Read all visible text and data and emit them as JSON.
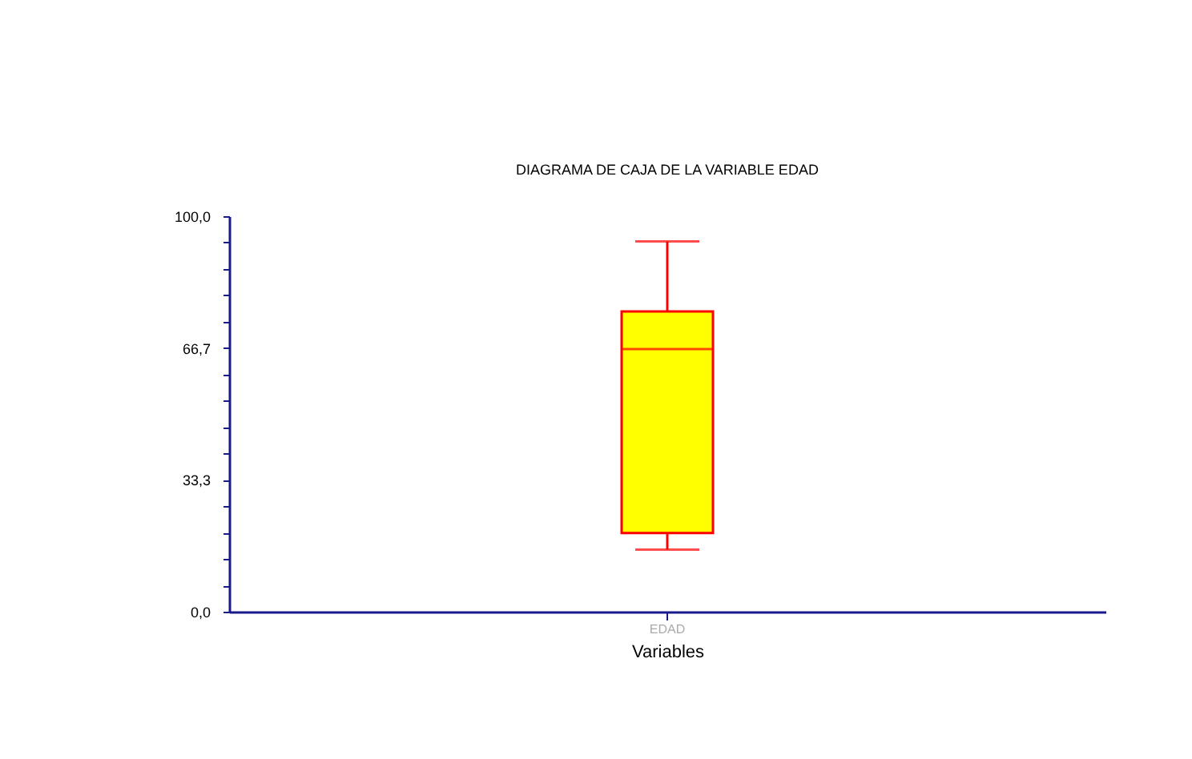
{
  "chart_data": {
    "type": "box",
    "title": "DIAGRAMA DE CAJA DE LA VARIABLE EDAD",
    "xlabel": "Variables",
    "categories": [
      "EDAD"
    ],
    "series": [
      {
        "color": "#ffff00",
        "boxes": [
          {
            "low": 15.7,
            "q1": 19.9,
            "median": 66.4,
            "q3": 75.9,
            "high": 93.6
          }
        ]
      }
    ],
    "ylim": [
      0,
      100
    ],
    "yticks": [
      {
        "value": 0,
        "label": "0,0"
      },
      {
        "value": 6.67,
        "label": null
      },
      {
        "value": 13.33,
        "label": null
      },
      {
        "value": 20,
        "label": null
      },
      {
        "value": 26.67,
        "label": null
      },
      {
        "value": 33.3,
        "label": "33,3"
      },
      {
        "value": 40,
        "label": null
      },
      {
        "value": 46.67,
        "label": null
      },
      {
        "value": 53.33,
        "label": null
      },
      {
        "value": 60,
        "label": null
      },
      {
        "value": 66.7,
        "label": "66,7"
      },
      {
        "value": 73.33,
        "label": null
      },
      {
        "value": 80,
        "label": null
      },
      {
        "value": 86.67,
        "label": null
      },
      {
        "value": 93.33,
        "label": null
      },
      {
        "value": 100,
        "label": "100,0"
      }
    ],
    "grid": false
  }
}
